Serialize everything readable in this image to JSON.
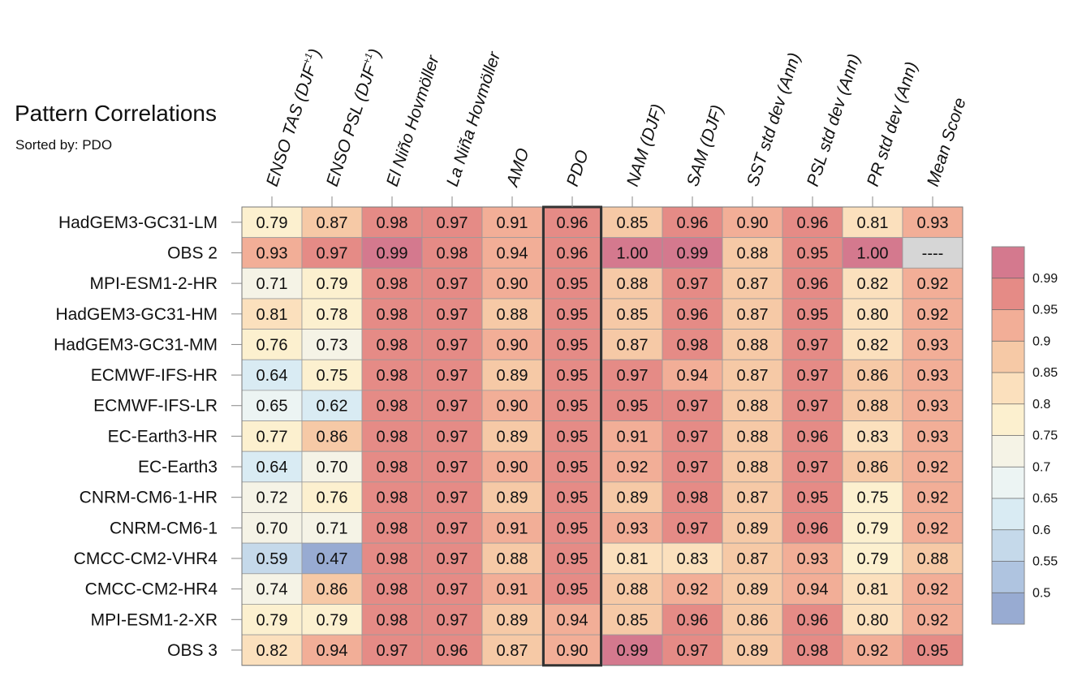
{
  "header": {
    "title": "Pattern Correlations",
    "sort_label": "Sorted by: PDO"
  },
  "chart_data": {
    "type": "heatmap",
    "title": "Pattern Correlations",
    "subtitle": "Sorted by: PDO",
    "columns": [
      {
        "label": "ENSO TAS (DJF",
        "sup": "+1",
        "close": ")"
      },
      {
        "label": "ENSO PSL (DJF",
        "sup": "+1",
        "close": ")"
      },
      {
        "label": "El Niño Hovmöller",
        "sup": "",
        "close": ""
      },
      {
        "label": "La Niña Hovmöller",
        "sup": "",
        "close": ""
      },
      {
        "label": "AMO",
        "sup": "",
        "close": ""
      },
      {
        "label": "PDO",
        "sup": "",
        "close": ""
      },
      {
        "label": "NAM (DJF)",
        "sup": "",
        "close": ""
      },
      {
        "label": "SAM (DJF)",
        "sup": "",
        "close": ""
      },
      {
        "label": "SST std dev (Ann)",
        "sup": "",
        "close": ""
      },
      {
        "label": "PSL std dev (Ann)",
        "sup": "",
        "close": ""
      },
      {
        "label": "PR std dev (Ann)",
        "sup": "",
        "close": ""
      },
      {
        "label": "Mean Score",
        "sup": "",
        "close": ""
      }
    ],
    "highlighted_column": "PDO",
    "rows": [
      "HadGEM3-GC31-LM",
      "OBS 2",
      "MPI-ESM1-2-HR",
      "HadGEM3-GC31-HM",
      "HadGEM3-GC31-MM",
      "ECMWF-IFS-HR",
      "ECMWF-IFS-LR",
      "EC-Earth3-HR",
      "EC-Earth3",
      "CNRM-CM6-1-HR",
      "CNRM-CM6-1",
      "CMCC-CM2-VHR4",
      "CMCC-CM2-HR4",
      "MPI-ESM1-2-XR",
      "OBS 3"
    ],
    "values": [
      [
        "0.79",
        "0.87",
        "0.98",
        "0.97",
        "0.91",
        "0.96",
        "0.85",
        "0.96",
        "0.90",
        "0.96",
        "0.81",
        "0.93"
      ],
      [
        "0.93",
        "0.97",
        "0.99",
        "0.98",
        "0.94",
        "0.96",
        "1.00",
        "0.99",
        "0.88",
        "0.95",
        "1.00",
        "----"
      ],
      [
        "0.71",
        "0.79",
        "0.98",
        "0.97",
        "0.90",
        "0.95",
        "0.88",
        "0.97",
        "0.87",
        "0.96",
        "0.82",
        "0.92"
      ],
      [
        "0.81",
        "0.78",
        "0.98",
        "0.97",
        "0.88",
        "0.95",
        "0.85",
        "0.96",
        "0.87",
        "0.95",
        "0.80",
        "0.92"
      ],
      [
        "0.76",
        "0.73",
        "0.98",
        "0.97",
        "0.90",
        "0.95",
        "0.87",
        "0.98",
        "0.88",
        "0.97",
        "0.82",
        "0.93"
      ],
      [
        "0.64",
        "0.75",
        "0.98",
        "0.97",
        "0.89",
        "0.95",
        "0.97",
        "0.94",
        "0.87",
        "0.97",
        "0.86",
        "0.93"
      ],
      [
        "0.65",
        "0.62",
        "0.98",
        "0.97",
        "0.90",
        "0.95",
        "0.95",
        "0.97",
        "0.88",
        "0.97",
        "0.88",
        "0.93"
      ],
      [
        "0.77",
        "0.86",
        "0.98",
        "0.97",
        "0.89",
        "0.95",
        "0.91",
        "0.97",
        "0.88",
        "0.96",
        "0.83",
        "0.93"
      ],
      [
        "0.64",
        "0.70",
        "0.98",
        "0.97",
        "0.90",
        "0.95",
        "0.92",
        "0.97",
        "0.88",
        "0.97",
        "0.86",
        "0.92"
      ],
      [
        "0.72",
        "0.76",
        "0.98",
        "0.97",
        "0.89",
        "0.95",
        "0.89",
        "0.98",
        "0.87",
        "0.95",
        "0.75",
        "0.92"
      ],
      [
        "0.70",
        "0.71",
        "0.98",
        "0.97",
        "0.91",
        "0.95",
        "0.93",
        "0.97",
        "0.89",
        "0.96",
        "0.79",
        "0.92"
      ],
      [
        "0.59",
        "0.47",
        "0.98",
        "0.97",
        "0.88",
        "0.95",
        "0.81",
        "0.83",
        "0.87",
        "0.93",
        "0.79",
        "0.88"
      ],
      [
        "0.74",
        "0.86",
        "0.98",
        "0.97",
        "0.91",
        "0.95",
        "0.88",
        "0.92",
        "0.89",
        "0.94",
        "0.81",
        "0.92"
      ],
      [
        "0.79",
        "0.79",
        "0.98",
        "0.97",
        "0.89",
        "0.94",
        "0.85",
        "0.96",
        "0.86",
        "0.96",
        "0.80",
        "0.92"
      ],
      [
        "0.82",
        "0.94",
        "0.97",
        "0.96",
        "0.87",
        "0.90",
        "0.99",
        "0.97",
        "0.89",
        "0.98",
        "0.92",
        "0.95"
      ]
    ],
    "colorbar": {
      "levels": [
        0.5,
        0.55,
        0.6,
        0.65,
        0.7,
        0.75,
        0.8,
        0.85,
        0.9,
        0.95,
        0.99
      ],
      "tick_labels": [
        "0.99",
        "0.95",
        "0.9",
        "0.85",
        "0.8",
        "0.75",
        "0.7",
        "0.65",
        "0.6",
        "0.55",
        "0.5"
      ],
      "colors": [
        "#98abd2",
        "#afc4e0",
        "#c5d9ea",
        "#d9ebf3",
        "#ecf4f3",
        "#f5f3e6",
        "#fcf0cf",
        "#fbe0bd",
        "#f6c9a6",
        "#f2ae97",
        "#e58b86",
        "#d4798e"
      ],
      "missing_color": "#d6d6d6"
    }
  }
}
